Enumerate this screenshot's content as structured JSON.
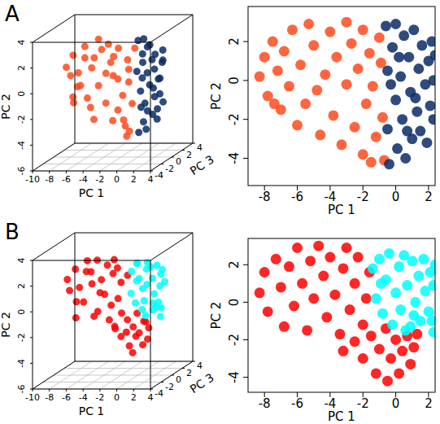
{
  "chart_data": [
    {
      "type": "scatter3d",
      "title": "A",
      "x_label": "PC 1",
      "y_label": "PC 2",
      "z_label": "PC 3",
      "xlim": [
        -10,
        4
      ],
      "ylim": [
        -6,
        4
      ],
      "zlim": [
        -4,
        4
      ],
      "xticks": [
        -10,
        -8,
        -6,
        -4,
        -2,
        0,
        2,
        4
      ],
      "yticks": [
        -6,
        -4,
        -2,
        0,
        2,
        4
      ],
      "zticks": [
        -4,
        -2,
        0,
        2,
        4
      ],
      "grid": true,
      "series": [
        {
          "color": "#ff4a1c",
          "x": [
            -8.3,
            -8,
            -7.8,
            -7.5,
            -7.2,
            -7,
            -6.8,
            -6.5,
            -6.3,
            -6,
            -5.8,
            -5.5,
            -5.3,
            -5,
            -4.8,
            -4.6,
            -4.3,
            -4,
            -3.8,
            -3.6,
            -3.3,
            -3,
            -3,
            -2.7,
            -2.5,
            -2.3,
            -2,
            -2,
            -1.8,
            -1.6,
            -1.4,
            -1.2,
            -1,
            -0.9,
            -0.8,
            -0.7,
            -1.5,
            -7.4
          ],
          "values": [
            0.2,
            1.2,
            -0.8,
            2,
            0.5,
            -1.5,
            1.5,
            -0.3,
            2.6,
            -2.3,
            0.8,
            -1.2,
            2.9,
            1.8,
            -0.5,
            -2.8,
            0.3,
            2.5,
            -1.8,
            1.2,
            -3.3,
            3,
            -0.2,
            1.9,
            -2.4,
            0.6,
            -3.8,
            2.6,
            -1.2,
            1.4,
            -0.3,
            -2.9,
            2.2,
            0.9,
            -1.9,
            -4.1,
            -4.2,
            -1.2
          ],
          "z": [
            0.5,
            -0.8,
            1,
            -0.3,
            0.2,
            -1,
            0.8,
            -0.5,
            0,
            0.6,
            0.5,
            -0.8,
            1,
            -0.3,
            0.2,
            -1,
            0.8,
            -0.5,
            0,
            0.6,
            0.5,
            -0.8,
            1,
            -0.3,
            0.2,
            -1,
            0.8,
            -0.5,
            0,
            0.6,
            0.5,
            -0.8,
            1,
            -0.3,
            0.2,
            -1,
            0.8,
            -0.5
          ]
        },
        {
          "color": "#0b2c66",
          "x": [
            -0.6,
            -0.5,
            -0.5,
            -0.4,
            -0.2,
            0,
            0,
            0.1,
            0.3,
            0.4,
            0.5,
            0.6,
            0.8,
            0.9,
            1,
            1.1,
            1.3,
            1.4,
            1.5,
            1.6,
            1.8,
            1.9,
            2,
            2.1,
            2.2,
            2.3,
            2.3,
            2.4,
            -0.3,
            0.7,
            1.2,
            0.2
          ],
          "values": [
            2.8,
            0.5,
            -2.5,
            -4.3,
            1.7,
            -1,
            2.9,
            -3.5,
            0.2,
            -2,
            2.3,
            -4,
            1.2,
            -0.6,
            -3,
            2.6,
            -1.6,
            0.6,
            -2.6,
            1.8,
            -0.2,
            -3.2,
            1,
            -1.3,
            2,
            0,
            -2,
            1.3,
            -0.2,
            -2.6,
            -0.9,
            1.2
          ],
          "z": [
            1,
            0.6,
            1.4,
            0.8,
            1.2,
            0.5,
            1.1,
            0.9,
            1.3,
            0.7,
            1,
            0.6,
            1.4,
            0.8,
            1.2,
            0.5,
            1.1,
            0.9,
            1.3,
            0.7,
            1,
            0.6,
            1.4,
            0.8,
            1.2,
            0.5,
            1.1,
            0.9,
            1.3,
            0.7,
            1,
            0.6
          ]
        }
      ]
    },
    {
      "type": "scatter",
      "x_label": "PC 1",
      "y_label": "PC 2",
      "xlim": [
        -9,
        2.4
      ],
      "ylim": [
        -5.4,
        3.8
      ],
      "xticks": [
        -8,
        -6,
        -4,
        -2,
        0,
        2
      ],
      "yticks": [
        -4,
        -2,
        0,
        2
      ],
      "series": [
        {
          "color": "#ff4a1c",
          "x": [
            -8.3,
            -8,
            -7.8,
            -7.5,
            -7.2,
            -7,
            -6.8,
            -6.5,
            -6.3,
            -6,
            -5.8,
            -5.5,
            -5.3,
            -5,
            -4.8,
            -4.6,
            -4.3,
            -4,
            -3.8,
            -3.6,
            -3.3,
            -3,
            -3,
            -2.7,
            -2.5,
            -2.3,
            -2,
            -2,
            -1.8,
            -1.6,
            -1.4,
            -1.2,
            -1,
            -0.9,
            -0.8,
            -0.7,
            -1.5,
            -7.4
          ],
          "values": [
            0.2,
            1.2,
            -0.8,
            2,
            0.5,
            -1.5,
            1.5,
            -0.3,
            2.6,
            -2.3,
            0.8,
            -1.2,
            2.9,
            1.8,
            -0.5,
            -2.8,
            0.3,
            2.5,
            -1.8,
            1.2,
            -3.3,
            3,
            -0.2,
            1.9,
            -2.4,
            0.6,
            -3.8,
            2.6,
            -1.2,
            1.4,
            -0.3,
            -2.9,
            2.2,
            0.9,
            -1.9,
            -4.1,
            -4.2,
            -1.2
          ]
        },
        {
          "color": "#0b2c66",
          "x": [
            -0.6,
            -0.5,
            -0.5,
            -0.4,
            -0.2,
            0,
            0,
            0.1,
            0.3,
            0.4,
            0.5,
            0.6,
            0.8,
            0.9,
            1,
            1.1,
            1.3,
            1.4,
            1.5,
            1.6,
            1.8,
            1.9,
            2,
            2.1,
            2.2,
            2.3,
            2.3,
            2.4,
            -0.3,
            0.7,
            1.2,
            0.2
          ],
          "values": [
            2.8,
            0.5,
            -2.5,
            -4.3,
            1.7,
            -1,
            2.9,
            -3.5,
            0.2,
            -2,
            2.3,
            -4,
            1.2,
            -0.6,
            -3,
            2.6,
            -1.6,
            0.6,
            -2.6,
            1.8,
            -0.2,
            -3.2,
            1,
            -1.3,
            2,
            0,
            -2,
            1.3,
            -0.2,
            -2.6,
            -0.9,
            1.2
          ]
        }
      ]
    },
    {
      "type": "scatter3d",
      "title": "B",
      "x_label": "PC 1",
      "y_label": "PC 2",
      "z_label": "PC 3",
      "xlim": [
        -10,
        4
      ],
      "ylim": [
        -6,
        4
      ],
      "zlim": [
        -4,
        4
      ],
      "xticks": [
        -10,
        -8,
        -6,
        -4,
        -2,
        0,
        2,
        4
      ],
      "yticks": [
        -6,
        -4,
        -2,
        0,
        2,
        4
      ],
      "zticks": [
        -4,
        -2,
        0,
        2,
        4
      ],
      "grid": true,
      "series": [
        {
          "color": "#ff0000",
          "x": [
            -8.3,
            -8,
            -7.8,
            -7.3,
            -7,
            -6.8,
            -6.5,
            -6.2,
            -6,
            -5.7,
            -5.4,
            -5.2,
            -5,
            -4.7,
            -4.4,
            -4.2,
            -4,
            -3.7,
            -3.4,
            -3.2,
            -3,
            -2.8,
            -2.5,
            -2.3,
            -2,
            -1.8,
            -1.6,
            -2.5,
            -2,
            -1.5,
            -1.2,
            -1,
            -0.6,
            -0.5,
            -0.3,
            0,
            0.2,
            0.4,
            0.7,
            0.9,
            1.1,
            1.3,
            -3.2
          ],
          "values": [
            0.5,
            1.6,
            -0.5,
            2.3,
            0.8,
            -1.3,
            1.9,
            -0.2,
            2.9,
            1,
            -1.5,
            2.2,
            0.2,
            3,
            1.4,
            -0.8,
            2.4,
            0.4,
            -1.7,
            1.8,
            2.9,
            -0.4,
            1,
            2.4,
            -1.2,
            0.2,
            1.6,
            -2.1,
            -3,
            -1.8,
            -3.8,
            -2.5,
            -1.4,
            -4.2,
            -3,
            -2,
            -3.8,
            -2.6,
            -1.8,
            -3.3,
            -2.4,
            -1.7,
            -2.6
          ],
          "z": [
            0.3,
            -0.6,
            0.8,
            -0.2,
            0.1,
            -0.9,
            0.6,
            -0.4,
            0,
            0.4,
            0.3,
            -0.6,
            0.8,
            -0.2,
            0.1,
            -0.9,
            0.6,
            -0.4,
            0,
            0.4,
            0.3,
            -0.6,
            0.8,
            -0.2,
            0.1,
            -0.9,
            0.6,
            -0.4,
            0,
            0.4,
            0.3,
            -0.6,
            0.8,
            -0.2,
            0.1,
            -0.9,
            0.6,
            -0.4,
            0,
            0.4,
            0.3,
            -0.6,
            0.8
          ]
        },
        {
          "color": "#00ffff",
          "x": [
            -1.4,
            -1.2,
            -1,
            -0.8,
            -0.6,
            -0.4,
            -0.2,
            0,
            0.2,
            0.3,
            0.5,
            0.7,
            0.9,
            1,
            1.2,
            1.4,
            1.5,
            1.7,
            1.8,
            2,
            2.1,
            2.3,
            2.3,
            2.4,
            -0.9,
            0.6,
            1.1,
            2.2
          ],
          "values": [
            1.8,
            0.2,
            2.3,
            -0.6,
            1.2,
            2.6,
            -1.2,
            0.5,
            1.9,
            -0.4,
            2.5,
            0.9,
            -1.3,
            2.2,
            0,
            1.4,
            -1,
            2.3,
            0.6,
            -0.5,
            1.6,
            -1.6,
            0.9,
            2,
            1,
            -1.5,
            -0.7,
            -1
          ],
          "z": [
            1,
            0.6,
            1.4,
            0.8,
            1.2,
            0.5,
            1.1,
            0.9,
            1.3,
            0.7,
            1,
            0.6,
            1.4,
            0.8,
            1.2,
            0.5,
            1.1,
            0.9,
            1.3,
            0.7,
            1,
            0.6,
            1.4,
            0.8,
            1.2,
            0.5,
            1.1,
            0.9
          ]
        }
      ]
    },
    {
      "type": "scatter",
      "x_label": "PC 1",
      "y_label": "PC 2",
      "xlim": [
        -9,
        2.4
      ],
      "ylim": [
        -4.8,
        3.4
      ],
      "xticks": [
        -8,
        -6,
        -4,
        -2,
        0,
        2
      ],
      "yticks": [
        -4,
        -2,
        0,
        2
      ],
      "series": [
        {
          "color": "#ff0000",
          "x": [
            -8.3,
            -8,
            -7.8,
            -7.3,
            -7,
            -6.8,
            -6.5,
            -6.2,
            -6,
            -5.7,
            -5.4,
            -5.2,
            -5,
            -4.7,
            -4.4,
            -4.2,
            -4,
            -3.7,
            -3.4,
            -3.2,
            -3,
            -2.8,
            -2.5,
            -2.3,
            -2,
            -1.8,
            -1.6,
            -2.5,
            -2,
            -1.5,
            -1.2,
            -1,
            -0.6,
            -0.5,
            -0.3,
            0,
            0.2,
            0.4,
            0.7,
            0.9,
            1.1,
            1.3,
            -3.2
          ],
          "values": [
            0.5,
            1.6,
            -0.5,
            2.3,
            0.8,
            -1.3,
            1.9,
            -0.2,
            2.9,
            1,
            -1.5,
            2.2,
            0.2,
            3,
            1.4,
            -0.8,
            2.4,
            0.4,
            -1.7,
            1.8,
            2.9,
            -0.4,
            1,
            2.4,
            -1.2,
            0.2,
            1.6,
            -2.1,
            -3,
            -1.8,
            -3.8,
            -2.5,
            -1.4,
            -4.2,
            -3,
            -2,
            -3.8,
            -2.6,
            -1.8,
            -3.3,
            -2.4,
            -1.7,
            -2.6
          ]
        },
        {
          "color": "#00ffff",
          "x": [
            -1.4,
            -1.2,
            -1,
            -0.8,
            -0.6,
            -0.4,
            -0.2,
            0,
            0.2,
            0.3,
            0.5,
            0.7,
            0.9,
            1,
            1.2,
            1.4,
            1.5,
            1.7,
            1.8,
            2,
            2.1,
            2.3,
            2.3,
            2.4,
            -0.9,
            0.6,
            1.1,
            2.2
          ],
          "values": [
            1.8,
            0.2,
            2.3,
            -0.6,
            1.2,
            2.6,
            -1.2,
            0.5,
            1.9,
            -0.4,
            2.5,
            0.9,
            -1.3,
            2.2,
            0,
            1.4,
            -1,
            2.3,
            0.6,
            -0.5,
            1.6,
            -1.6,
            0.9,
            2,
            1,
            -1.5,
            -0.7,
            -1
          ]
        }
      ]
    }
  ]
}
